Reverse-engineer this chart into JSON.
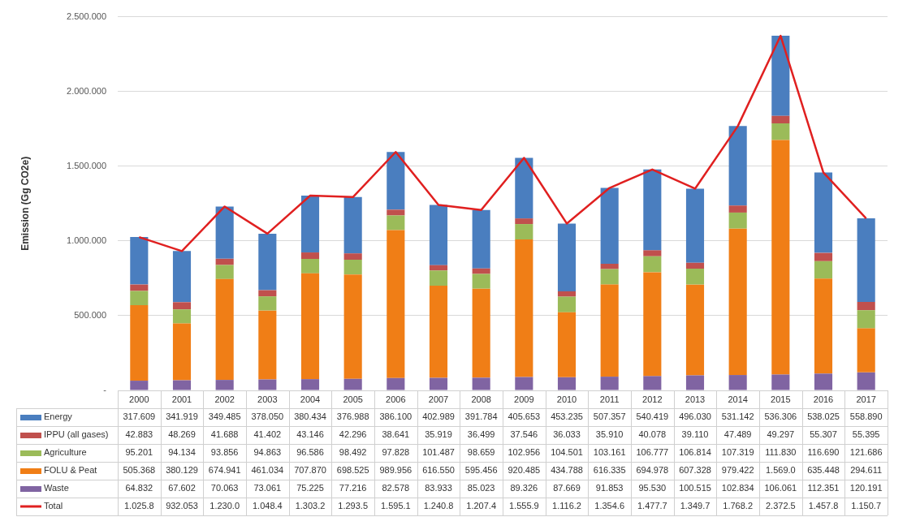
{
  "chart_data": {
    "type": "bar",
    "stacked": true,
    "ylabel": "Emission (Gg CO2e)",
    "categories": [
      "2000",
      "2001",
      "2002",
      "2003",
      "2004",
      "2005",
      "2006",
      "2007",
      "2008",
      "2009",
      "2010",
      "2011",
      "2012",
      "2013",
      "2014",
      "2015",
      "2016",
      "2017"
    ],
    "ylim": [
      0,
      2500000
    ],
    "yticks": [
      {
        "value": 0,
        "label": "-"
      },
      {
        "value": 500000,
        "label": "500.000"
      },
      {
        "value": 1000000,
        "label": "1.000.000"
      },
      {
        "value": 1500000,
        "label": "1.500.000"
      },
      {
        "value": 2000000,
        "label": "2.000.000"
      },
      {
        "value": 2500000,
        "label": "2.500.000"
      }
    ],
    "grid": "y",
    "legend": "bottom",
    "marker": "none",
    "series": [
      {
        "name": "Waste",
        "color": "#8064a2",
        "values": [
          64832,
          67602,
          70063,
          73061,
          75225,
          77216,
          82578,
          83933,
          85023,
          89326,
          87669,
          91853,
          95530,
          100515,
          102834,
          106061,
          112351,
          120191
        ],
        "value_labels": [
          "64.832",
          "67.602",
          "70.063",
          "73.061",
          "75.225",
          "77.216",
          "82.578",
          "83.933",
          "85.023",
          "89.326",
          "87.669",
          "91.853",
          "95.530",
          "100.515",
          "102.834",
          "106.061",
          "112.351",
          "120.191"
        ]
      },
      {
        "name": "FOLU & Peat",
        "color": "#f07e16",
        "values": [
          505368,
          380129,
          674941,
          461034,
          707870,
          698525,
          989956,
          616550,
          595456,
          920485,
          434788,
          616335,
          694978,
          607328,
          979422,
          1569000,
          635448,
          294611
        ],
        "value_labels": [
          "505.368",
          "380.129",
          "674.941",
          "461.034",
          "707.870",
          "698.525",
          "989.956",
          "616.550",
          "595.456",
          "920.485",
          "434.788",
          "616.335",
          "694.978",
          "607.328",
          "979.422",
          "1.569.0",
          "635.448",
          "294.611"
        ]
      },
      {
        "name": "Agriculture",
        "color": "#9bbb59",
        "values": [
          95201,
          94134,
          93856,
          94863,
          96586,
          98492,
          97828,
          101487,
          98659,
          102956,
          104501,
          103161,
          106777,
          106814,
          107319,
          111830,
          116690,
          121686
        ],
        "value_labels": [
          "95.201",
          "94.134",
          "93.856",
          "94.863",
          "96.586",
          "98.492",
          "97.828",
          "101.487",
          "98.659",
          "102.956",
          "104.501",
          "103.161",
          "106.777",
          "106.814",
          "107.319",
          "111.830",
          "116.690",
          "121.686"
        ]
      },
      {
        "name": "IPPU (all gases)",
        "color": "#c0504d",
        "values": [
          42883,
          48269,
          41688,
          41402,
          43146,
          42296,
          38641,
          35919,
          36499,
          37546,
          36033,
          35910,
          40078,
          39110,
          47489,
          49297,
          55307,
          55395
        ],
        "value_labels": [
          "42.883",
          "48.269",
          "41.688",
          "41.402",
          "43.146",
          "42.296",
          "38.641",
          "35.919",
          "36.499",
          "37.546",
          "36.033",
          "35.910",
          "40.078",
          "39.110",
          "47.489",
          "49.297",
          "55.307",
          "55.395"
        ]
      },
      {
        "name": "Energy",
        "color": "#4a7ebf",
        "values": [
          317609,
          341919,
          349485,
          378050,
          380434,
          376988,
          386100,
          402989,
          391784,
          405653,
          453235,
          507357,
          540419,
          496030,
          531142,
          536306,
          538025,
          558890
        ],
        "value_labels": [
          "317.609",
          "341.919",
          "349.485",
          "378.050",
          "380.434",
          "376.988",
          "386.100",
          "402.989",
          "391.784",
          "405.653",
          "453.235",
          "507.357",
          "540.419",
          "496.030",
          "531.142",
          "536.306",
          "538.025",
          "558.890"
        ]
      },
      {
        "name": "Total",
        "type": "line",
        "color": "#e02020",
        "values": [
          1025893,
          932053,
          1230033,
          1048410,
          1303261,
          1293517,
          1595103,
          1240878,
          1207421,
          1555966,
          1116226,
          1354616,
          1477782,
          1349797,
          1768206,
          2372494,
          1457821,
          1150773
        ],
        "value_labels": [
          "1.025.8",
          "932.053",
          "1.230.0",
          "1.048.4",
          "1.303.2",
          "1.293.5",
          "1.595.1",
          "1.240.8",
          "1.207.4",
          "1.555.9",
          "1.116.2",
          "1.354.6",
          "1.477.7",
          "1.349.7",
          "1.768.2",
          "2.372.5",
          "1.457.8",
          "1.150.7"
        ]
      }
    ]
  }
}
